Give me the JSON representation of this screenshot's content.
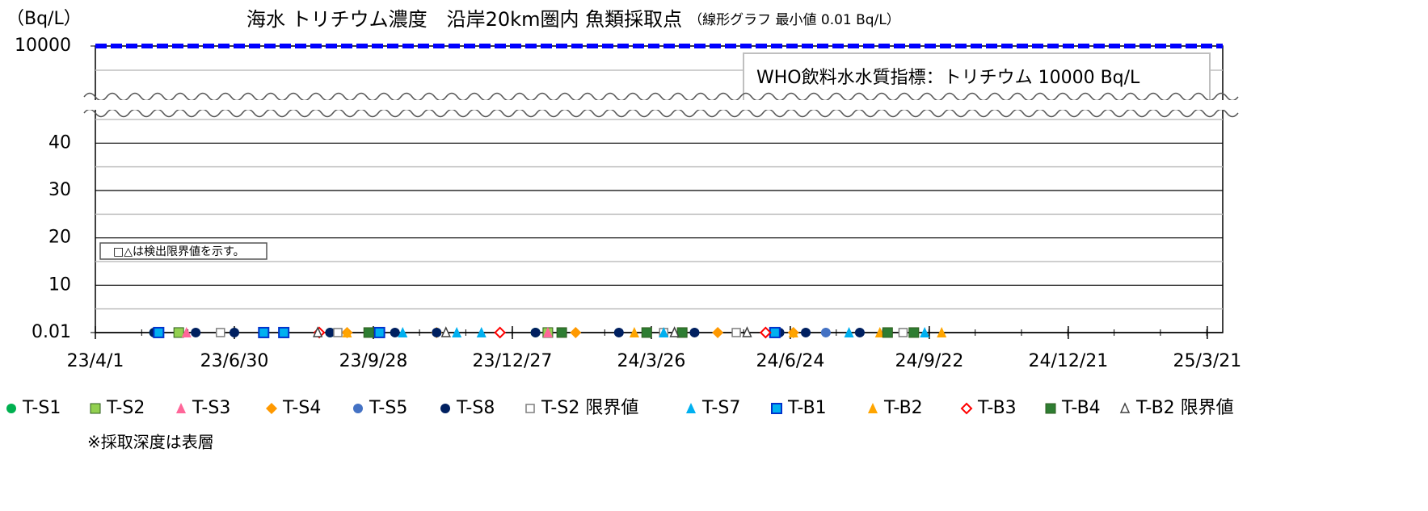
{
  "chart_data": {
    "type": "scatter",
    "title": "海水 トリチウム濃度　沿岸20km圏内 魚類採取点",
    "subtitle": "（線形グラフ 最小値 0.01 Bq/L）",
    "y_label": "（Bq/L）",
    "note": "□△は検出限界値を示す。",
    "footnote": "※採取深度は表層",
    "reference_line": {
      "value": 10000,
      "label": "WHO飲料水水質指標：トリチウム 10000 Bq/L",
      "color": "#0000ff"
    },
    "xlim": [
      "2023-04-01",
      "2025-03-31"
    ],
    "xticks": [
      {
        "value": "2023-04-01",
        "label": "23/4/1"
      },
      {
        "value": "2023-06-30",
        "label": "23/6/30"
      },
      {
        "value": "2023-09-28",
        "label": "23/9/28"
      },
      {
        "value": "2023-12-27",
        "label": "23/12/27"
      },
      {
        "value": "2024-03-26",
        "label": "24/3/26"
      },
      {
        "value": "2024-06-24",
        "label": "24/6/24"
      },
      {
        "value": "2024-09-22",
        "label": "24/9/22"
      },
      {
        "value": "2024-12-21",
        "label": "24/12/21"
      },
      {
        "value": "2025-03-21",
        "label": "25/3/21"
      }
    ],
    "ylim": [
      0,
      10000
    ],
    "axis_break": [
      45,
      10000
    ],
    "yticks": [
      0.01,
      10,
      20,
      30,
      40,
      10000
    ],
    "minor_yticks": [
      5,
      15,
      25,
      35,
      45
    ],
    "grid": true,
    "legend": "bottom",
    "series": [
      {
        "name": "T-S1",
        "color": "#00b050",
        "marker": "circle",
        "x": [
          "2023-05-09",
          "2023-08-31",
          "2024-01-11"
        ],
        "values": [
          0.01,
          0.01,
          0.01
        ]
      },
      {
        "name": "T-S2",
        "color": "#92d050",
        "marker": "square",
        "x": [
          "2023-05-25",
          "2024-01-19"
        ],
        "values": [
          0.01,
          0.01
        ]
      },
      {
        "name": "T-S3",
        "color": "#ff6699",
        "marker": "triangle",
        "x": [
          "2023-05-30",
          "2024-01-19"
        ],
        "values": [
          0.01,
          0.01
        ]
      },
      {
        "name": "T-S4",
        "color": "#ff9900",
        "marker": "diamond",
        "x": [
          "2023-08-01",
          "2023-09-11",
          "2023-11-08",
          "2024-02-06",
          "2024-05-08",
          "2024-06-26"
        ],
        "values": [
          0.01,
          0.01,
          0.01,
          0.01,
          0.01,
          0.01
        ]
      },
      {
        "name": "T-S5",
        "color": "#4472c4",
        "marker": "circle",
        "x": [
          "2024-07-17"
        ],
        "values": [
          0.01
        ]
      },
      {
        "name": "T-S8",
        "color": "#002060",
        "marker": "circle",
        "x": [
          "2023-05-09",
          "2023-06-05",
          "2023-06-30",
          "2023-07-19",
          "2023-08-31",
          "2023-10-12",
          "2023-11-08",
          "2024-01-11",
          "2024-03-05",
          "2024-04-23",
          "2024-06-17",
          "2024-07-04",
          "2024-08-08"
        ],
        "values": [
          0.01,
          0.01,
          0.01,
          0.01,
          0.01,
          0.01,
          0.01,
          0.01,
          0.01,
          0.01,
          0.01,
          0.01,
          0.01
        ]
      },
      {
        "name": "T-S2 限界値",
        "color": "#7f7f7f",
        "marker": "open-square",
        "x": [
          "2023-06-21",
          "2023-09-05",
          "2024-04-03",
          "2024-05-20",
          "2024-09-05"
        ],
        "values": [
          0.01,
          0.01,
          0.01,
          0.01,
          0.01
        ]
      },
      {
        "name": "T-S7",
        "color": "#00b0f0",
        "marker": "triangle",
        "x": [
          "2023-10-17",
          "2023-11-21",
          "2023-12-07",
          "2024-04-03",
          "2024-08-01",
          "2024-09-19"
        ],
        "values": [
          0.01,
          0.01,
          0.01,
          0.01,
          0.01,
          0.01
        ]
      },
      {
        "name": "T-B1",
        "color": "#00b0f0",
        "marker": "square-blue",
        "x": [
          "2023-05-12",
          "2023-07-19",
          "2023-08-01",
          "2023-10-02",
          "2024-06-14"
        ],
        "values": [
          0.01,
          0.01,
          0.01,
          0.01,
          0.01
        ]
      },
      {
        "name": "T-B2",
        "color": "#ffa500",
        "marker": "triangle",
        "x": [
          "2023-09-11",
          "2024-03-15",
          "2024-06-26",
          "2024-08-21",
          "2024-09-30"
        ],
        "values": [
          0.01,
          0.01,
          0.01,
          0.01,
          0.01
        ]
      },
      {
        "name": "T-B3",
        "color": "#ff0000",
        "marker": "open-diamond",
        "x": [
          "2023-08-24",
          "2023-12-19",
          "2024-06-08"
        ],
        "values": [
          0.01,
          0.01,
          0.01
        ]
      },
      {
        "name": "T-B4",
        "color": "#2e7d32",
        "marker": "square",
        "x": [
          "2023-09-25",
          "2024-01-28",
          "2024-03-23",
          "2024-04-15",
          "2024-08-26",
          "2024-09-12"
        ],
        "values": [
          0.01,
          0.01,
          0.01,
          0.01,
          0.01,
          0.01
        ]
      },
      {
        "name": "T-B2 限界値",
        "color": "#404040",
        "marker": "open-triangle",
        "x": [
          "2023-08-23",
          "2023-11-14",
          "2024-04-10",
          "2024-05-27"
        ],
        "values": [
          0.01,
          0.01,
          0.01,
          0.01
        ]
      }
    ]
  }
}
